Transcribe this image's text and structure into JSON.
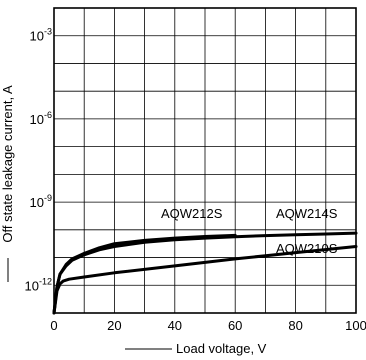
{
  "chart_data": {
    "type": "line",
    "title": "",
    "xlabel": "Load voltage, V",
    "ylabel": "Off state leakage current, A",
    "xlim": [
      0,
      100
    ],
    "ylim_log10": [
      -13,
      -2
    ],
    "y_scale": "log",
    "grid": true,
    "x_ticks": [
      0,
      20,
      40,
      60,
      80,
      100
    ],
    "x_tick_labels": [
      "0",
      "20",
      "40",
      "60",
      "80",
      "100"
    ],
    "y_tick_labels": [
      {
        "base": "10",
        "exp": "-3",
        "value": -3
      },
      {
        "base": "10",
        "exp": "-6",
        "value": -6
      },
      {
        "base": "10",
        "exp": "-9",
        "value": -9
      },
      {
        "base": "10",
        "exp": "-12",
        "value": -12
      }
    ],
    "series": [
      {
        "name": "AQW212S",
        "x": [
          0,
          1,
          2,
          4,
          6,
          10,
          15,
          20,
          30,
          40,
          50,
          60
        ],
        "y_log10": [
          -13,
          -12.05,
          -11.6,
          -11.25,
          -11.05,
          -10.85,
          -10.65,
          -10.5,
          -10.38,
          -10.3,
          -10.24,
          -10.2
        ]
      },
      {
        "name": "AQW214S",
        "x": [
          0,
          1,
          2,
          4,
          6,
          10,
          15,
          20,
          30,
          40,
          50,
          60,
          70,
          80,
          90,
          100
        ],
        "y_log10": [
          -13,
          -12.05,
          -11.6,
          -11.3,
          -11.1,
          -10.9,
          -10.72,
          -10.6,
          -10.45,
          -10.36,
          -10.3,
          -10.25,
          -10.21,
          -10.18,
          -10.15,
          -10.12
        ]
      },
      {
        "name": "AQW210S",
        "x": [
          0,
          1,
          2,
          3,
          5,
          10,
          20,
          40,
          60,
          80,
          100
        ],
        "y_log10": [
          -13,
          -12.2,
          -11.95,
          -11.85,
          -11.78,
          -11.7,
          -11.55,
          -11.3,
          -11.05,
          -10.82,
          -10.6
        ]
      }
    ]
  }
}
